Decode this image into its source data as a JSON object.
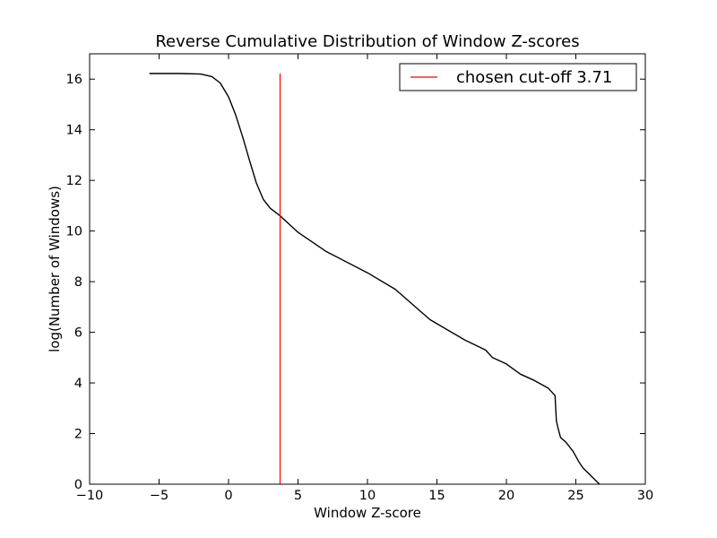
{
  "chart_data": {
    "type": "line",
    "title": "Reverse Cumulative Distribution of Window Z-scores",
    "xlabel": "Window Z-score",
    "ylabel": "log(Number of Windows)",
    "xlim": [
      -10,
      30
    ],
    "ylim": [
      0,
      17
    ],
    "x_ticks": [
      -10,
      -5,
      0,
      5,
      10,
      15,
      20,
      25,
      30
    ],
    "x_tick_labels": [
      "−10",
      "−5",
      "0",
      "5",
      "10",
      "15",
      "20",
      "25",
      "30"
    ],
    "y_ticks": [
      0,
      2,
      4,
      6,
      8,
      10,
      12,
      14,
      16
    ],
    "y_tick_labels": [
      "0",
      "2",
      "4",
      "6",
      "8",
      "10",
      "12",
      "14",
      "16"
    ],
    "grid": false,
    "legend_position": "top-right",
    "series": [
      {
        "color": "#000000",
        "x": [
          -5.7,
          -3.5,
          -2.0,
          -1.2,
          -0.6,
          0.0,
          0.5,
          1.0,
          1.5,
          2.0,
          2.5,
          3.0,
          3.71,
          4.5,
          5.0,
          7.0,
          10.0,
          12.0,
          14.5,
          17.0,
          18.5,
          19.0,
          20.0,
          21.0,
          22.0,
          23.0,
          23.5,
          23.6,
          23.7,
          23.9,
          24.3,
          24.8,
          25.2,
          25.5,
          26.7
        ],
        "y": [
          16.22,
          16.22,
          16.2,
          16.1,
          15.85,
          15.3,
          14.6,
          13.75,
          12.8,
          11.9,
          11.25,
          10.9,
          10.6,
          10.2,
          9.95,
          9.2,
          8.35,
          7.7,
          6.5,
          5.7,
          5.3,
          5.0,
          4.75,
          4.35,
          4.1,
          3.8,
          3.5,
          2.5,
          2.25,
          1.85,
          1.65,
          1.3,
          0.9,
          0.65,
          0.0
        ]
      },
      {
        "name": "chosen cut-off 3.71",
        "color": "#ff0000",
        "x": [
          3.71,
          3.71
        ],
        "y": [
          0,
          16.22
        ]
      }
    ]
  }
}
